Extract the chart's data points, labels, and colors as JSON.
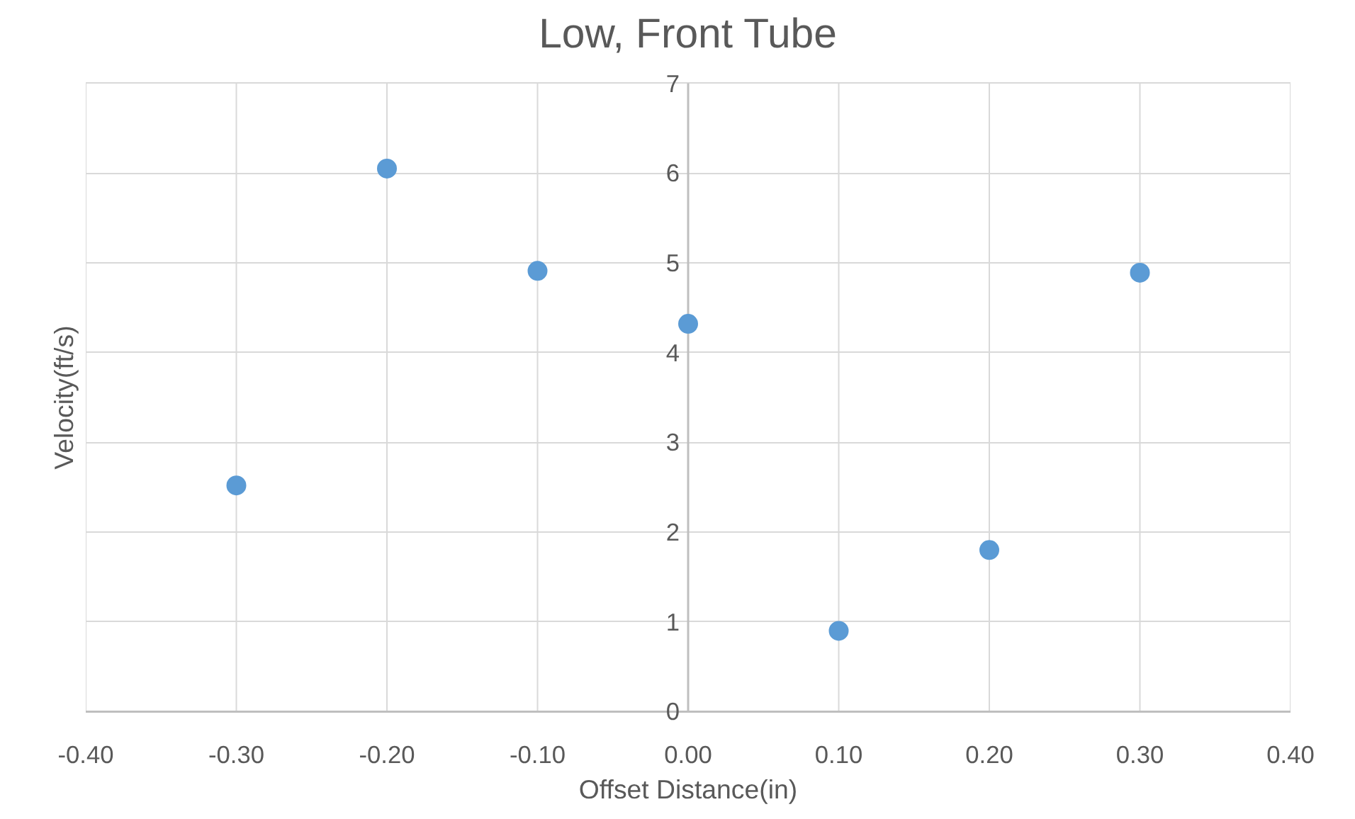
{
  "chart_data": {
    "type": "scatter",
    "title": "Low, Front Tube",
    "xlabel": "Offset Distance(in)",
    "ylabel": "Velocity(ft/s)",
    "x": [
      -0.3,
      -0.2,
      -0.1,
      0.0,
      0.1,
      0.2,
      0.3
    ],
    "series": [
      {
        "color": "#5b9bd5",
        "values": [
          2.52,
          6.05,
          4.91,
          4.32,
          0.9,
          1.8,
          4.89
        ]
      }
    ],
    "xlim": [
      -0.4,
      0.4
    ],
    "xticks": [
      {
        "value": -0.4,
        "label": "-0.40"
      },
      {
        "value": -0.3,
        "label": "-0.30"
      },
      {
        "value": -0.2,
        "label": "-0.20"
      },
      {
        "value": -0.1,
        "label": "-0.10"
      },
      {
        "value": 0.0,
        "label": "0.00"
      },
      {
        "value": 0.1,
        "label": "0.10"
      },
      {
        "value": 0.2,
        "label": "0.20"
      },
      {
        "value": 0.3,
        "label": "0.30"
      },
      {
        "value": 0.4,
        "label": "0.40"
      }
    ],
    "ylim": [
      0,
      7
    ],
    "yticks": [
      0,
      1,
      2,
      3,
      4,
      5,
      6,
      7
    ],
    "grid": true,
    "marker": "circle"
  }
}
